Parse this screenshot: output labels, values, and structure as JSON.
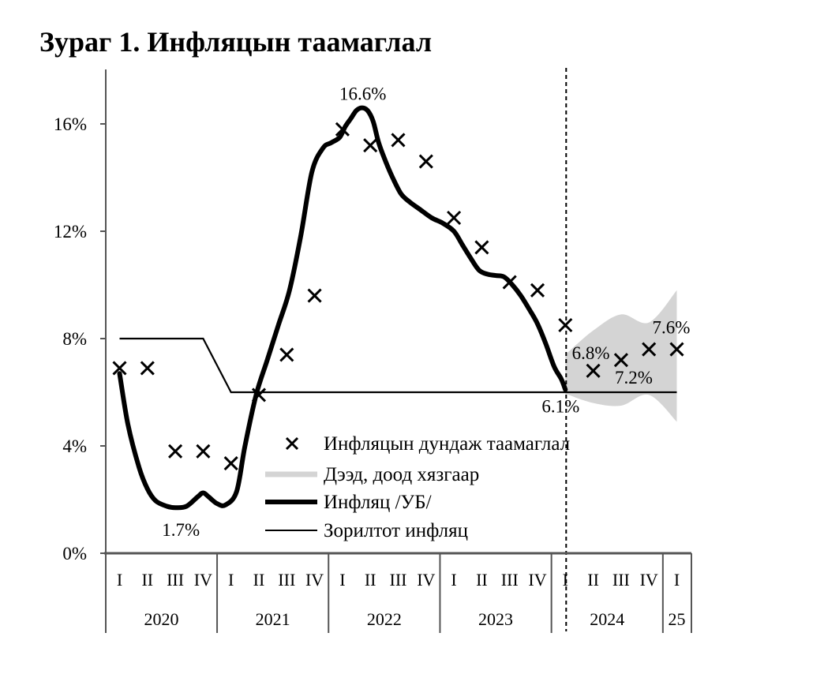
{
  "title": "Зураг 1. Инфляцын таамаглал",
  "chart_data": {
    "type": "line",
    "y_ticks": [
      "0%",
      "4%",
      "8%",
      "12%",
      "16%"
    ],
    "y_tick_values": [
      0,
      4,
      8,
      12,
      16
    ],
    "ylim": [
      0,
      17.8
    ],
    "quarters": [
      "I",
      "II",
      "III",
      "IV",
      "I",
      "II",
      "III",
      "IV",
      "I",
      "II",
      "III",
      "IV",
      "I",
      "II",
      "III",
      "IV",
      "I",
      "II",
      "III",
      "IV",
      "I"
    ],
    "years": [
      {
        "label": "2020",
        "quarters": 4
      },
      {
        "label": "2021",
        "quarters": 4
      },
      {
        "label": "2022",
        "quarters": 4
      },
      {
        "label": "2023",
        "quarters": 4
      },
      {
        "label": "2024",
        "quarters": 4
      },
      {
        "label": "25",
        "quarters": 1
      }
    ],
    "forecast_start_index": 16,
    "series": [
      {
        "name": "Инфляцын дундаж таамаглал",
        "style": "marker-x",
        "color": "#000000",
        "values": [
          6.9,
          6.9,
          3.8,
          3.8,
          3.35,
          5.9,
          7.4,
          9.6,
          15.8,
          15.2,
          15.4,
          14.6,
          12.5,
          11.4,
          10.1,
          9.8,
          8.5,
          6.8,
          7.2,
          7.6,
          7.6
        ]
      },
      {
        "name": "Дээд, доод хязгаар",
        "style": "band",
        "color": "#d4d4d4",
        "x": [
          16,
          17,
          18,
          19,
          20
        ],
        "upper": [
          7.4,
          8.3,
          8.9,
          8.6,
          9.8
        ],
        "lower": [
          5.95,
          5.6,
          5.5,
          5.9,
          4.9
        ]
      },
      {
        "name": "Инфляц /УБ/",
        "style": "thick-line",
        "color": "#000000",
        "x": [
          0,
          0.3,
          0.7,
          1.0,
          1.3,
          1.7,
          2.0,
          2.4,
          2.8,
          3.0,
          3.2,
          3.5,
          3.8,
          4.2,
          4.5,
          4.9,
          5.3,
          5.7,
          6.1,
          6.5,
          6.9,
          7.3,
          7.6,
          7.9,
          8.1,
          8.3,
          8.5,
          8.7,
          8.9,
          9.1,
          9.3,
          9.55,
          9.8,
          10.1,
          10.4,
          10.8,
          11.2,
          11.6,
          12.0,
          12.3,
          12.6,
          12.9,
          13.2,
          13.5,
          13.8,
          14.1,
          14.4,
          14.7,
          15.0,
          15.3,
          15.6,
          15.85,
          16.0
        ],
        "values": [
          6.7,
          4.8,
          3.2,
          2.4,
          1.95,
          1.75,
          1.7,
          1.75,
          2.1,
          2.25,
          2.1,
          1.85,
          1.8,
          2.3,
          4.0,
          5.9,
          7.2,
          8.5,
          9.8,
          11.8,
          14.2,
          15.1,
          15.3,
          15.5,
          15.9,
          16.2,
          16.5,
          16.6,
          16.5,
          16.1,
          15.3,
          14.6,
          14.0,
          13.4,
          13.1,
          12.8,
          12.5,
          12.3,
          12.0,
          11.5,
          11.0,
          10.55,
          10.4,
          10.35,
          10.3,
          10.0,
          9.6,
          9.1,
          8.55,
          7.8,
          6.95,
          6.5,
          6.1
        ]
      },
      {
        "name": "Зорилтот инфляц",
        "style": "thin-line",
        "color": "#000000",
        "x": [
          0,
          3.0,
          4.0,
          20.0
        ],
        "values": [
          8.0,
          8.0,
          6.0,
          6.0
        ]
      }
    ],
    "annotations": [
      {
        "text": "16.6%",
        "x": 8.73,
        "y": 16.6,
        "dx": 0,
        "dy": -10
      },
      {
        "text": "1.7%",
        "x": 2.2,
        "y": 1.7,
        "dx": 0,
        "dy": 36
      },
      {
        "text": "6.1%",
        "x": 16.0,
        "y": 6.1,
        "dx": -6,
        "dy": 29
      },
      {
        "text": "6.8%",
        "x": 17.0,
        "y": 6.8,
        "dx": -3,
        "dy": -15
      },
      {
        "text": "7.2%",
        "x": 18.0,
        "y": 7.2,
        "dx": 16,
        "dy": 30
      },
      {
        "text": "7.6%",
        "x": 20.0,
        "y": 7.6,
        "dx": -7,
        "dy": -20
      }
    ],
    "legend_position": "bottom-center"
  }
}
